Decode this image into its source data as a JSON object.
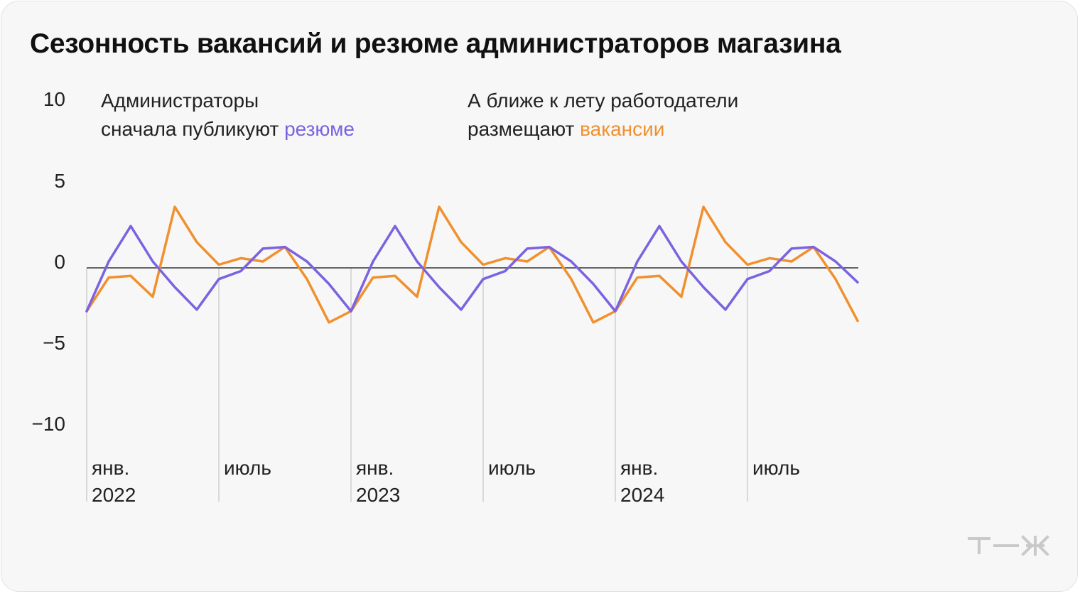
{
  "title": "Сезонность вакансий и резюме администраторов магазина",
  "annotations": {
    "left": {
      "line1": "Администраторы",
      "line2_prefix": "сначала публикуют",
      "highlight": "резюме"
    },
    "right": {
      "line1": "А ближе к лету работодатели",
      "line2_prefix": "размещают",
      "highlight": "вакансии"
    }
  },
  "colors": {
    "resume": "#7b63e0",
    "vacancies": "#f0902e",
    "axis": "#333333",
    "grid": "#d9d9d9"
  },
  "chart_data": {
    "type": "line",
    "title": "Сезонность вакансий и резюме администраторов магазина",
    "ylim": [
      -10,
      10
    ],
    "yticks": [
      10,
      5,
      0,
      -5,
      -10
    ],
    "ytick_labels": [
      "10",
      "5",
      "0",
      "−5",
      "−10"
    ],
    "x": [
      "2022-01",
      "2022-02",
      "2022-03",
      "2022-04",
      "2022-05",
      "2022-06",
      "2022-07",
      "2022-08",
      "2022-09",
      "2022-10",
      "2022-11",
      "2022-12",
      "2023-01",
      "2023-02",
      "2023-03",
      "2023-04",
      "2023-05",
      "2023-06",
      "2023-07",
      "2023-08",
      "2023-09",
      "2023-10",
      "2023-11",
      "2023-12",
      "2024-01",
      "2024-02",
      "2024-03",
      "2024-04",
      "2024-05",
      "2024-06",
      "2024-07",
      "2024-08",
      "2024-09",
      "2024-10",
      "2024-11",
      "2024-12"
    ],
    "x_ticks": [
      {
        "index": 0,
        "line1": "янв.",
        "line2": "2022"
      },
      {
        "index": 6,
        "line1": "июль",
        "line2": ""
      },
      {
        "index": 12,
        "line1": "янв.",
        "line2": "2023"
      },
      {
        "index": 18,
        "line1": "июль",
        "line2": ""
      },
      {
        "index": 24,
        "line1": "янв.",
        "line2": "2024"
      },
      {
        "index": 30,
        "line1": "июль",
        "line2": ""
      }
    ],
    "series": [
      {
        "name": "вакансии",
        "color": "#f0902e",
        "values": [
          -2.7,
          -0.6,
          -0.5,
          -1.8,
          3.8,
          1.6,
          0.2,
          0.6,
          0.4,
          1.3,
          -0.7,
          -3.4,
          -2.7,
          -0.6,
          -0.5,
          -1.8,
          3.8,
          1.6,
          0.2,
          0.6,
          0.4,
          1.3,
          -0.7,
          -3.4,
          -2.7,
          -0.6,
          -0.5,
          -1.8,
          3.8,
          1.6,
          0.2,
          0.6,
          0.4,
          1.3,
          -0.7,
          -3.3
        ]
      },
      {
        "name": "резюме",
        "color": "#7b63e0",
        "values": [
          -2.7,
          0.4,
          2.6,
          0.4,
          -1.2,
          -2.6,
          -0.7,
          -0.2,
          1.2,
          1.3,
          0.4,
          -1.0,
          -2.7,
          0.4,
          2.6,
          0.4,
          -1.2,
          -2.6,
          -0.7,
          -0.2,
          1.2,
          1.3,
          0.4,
          -1.0,
          -2.7,
          0.4,
          2.6,
          0.4,
          -1.2,
          -2.6,
          -0.7,
          -0.2,
          1.2,
          1.3,
          0.4,
          -0.9
        ]
      }
    ]
  }
}
